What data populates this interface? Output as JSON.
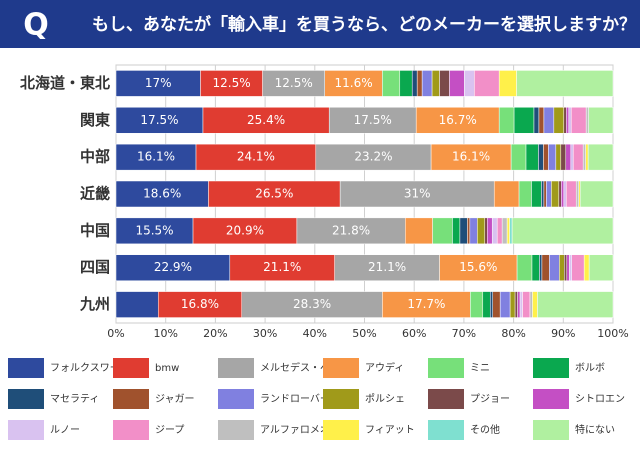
{
  "chart_data": {
    "type": "stacked-bar-horizontal",
    "question_label": "Q",
    "title": "もし、あなたが「輸入車」を買うなら、どのメーカーを選択しますか？",
    "categories": [
      "北海道・東北",
      "関東",
      "中部",
      "近畿",
      "中国",
      "四国",
      "九州"
    ],
    "xlim": [
      0,
      100
    ],
    "xticks": [
      {
        "value": 0,
        "label": "0%"
      },
      {
        "value": 10,
        "label": "10%"
      },
      {
        "value": 20,
        "label": "20%"
      },
      {
        "value": 30,
        "label": "30%"
      },
      {
        "value": 40,
        "label": "40%"
      },
      {
        "value": 50,
        "label": "50%"
      },
      {
        "value": 60,
        "label": "60%"
      },
      {
        "value": 70,
        "label": "70%"
      },
      {
        "value": 80,
        "label": "80%"
      },
      {
        "value": 90,
        "label": "90%"
      },
      {
        "value": 100,
        "label": "100%"
      }
    ],
    "grid": true,
    "series": [
      {
        "name": "フォルクスワーゲン",
        "color": "#2e4a9e",
        "values": [
          17,
          17.5,
          16.1,
          18.6,
          15.5,
          22.9,
          8.5
        ],
        "value_labels": [
          "17%",
          "17.5%",
          "16.1%",
          "18.6%",
          "15.5%",
          "22.9%",
          null
        ]
      },
      {
        "name": "bmw",
        "color": "#e03c31",
        "values": [
          12.5,
          25.4,
          24.1,
          26.5,
          20.9,
          21.1,
          16.8
        ],
        "value_labels": [
          "12.5%",
          "25.4%",
          "24.1%",
          "26.5%",
          "20.9%",
          "21.1%",
          "16.8%"
        ]
      },
      {
        "name": "メルセデス・ベンツ",
        "color": "#a6a6a6",
        "values": [
          12.5,
          17.5,
          23.2,
          31,
          21.8,
          21.1,
          28.3
        ],
        "value_labels": [
          "12.5%",
          "17.5%",
          "23.2%",
          "31%",
          "21.8%",
          "21.1%",
          "28.3%"
        ]
      },
      {
        "name": "アウディ",
        "color": "#f79646",
        "values": [
          11.6,
          16.7,
          16.1,
          5,
          5.5,
          15.6,
          17.7
        ],
        "value_labels": [
          "11.6%",
          "16.7%",
          "16.1%",
          null,
          null,
          "15.6%",
          "17.7%"
        ]
      },
      {
        "name": "ミニ",
        "color": "#77e07a",
        "values": [
          3.5,
          3,
          3,
          2.5,
          4,
          3,
          2.5
        ]
      },
      {
        "name": "ボルボ",
        "color": "#0aa84f",
        "values": [
          2.5,
          4,
          2.5,
          2,
          1.5,
          1.5,
          1.5
        ]
      },
      {
        "name": "マセラティ",
        "color": "#1f4e79",
        "values": [
          1,
          1,
          1,
          0.5,
          1.5,
          0.5,
          0.5
        ]
      },
      {
        "name": "ジャガー",
        "color": "#a0522d",
        "values": [
          1,
          1,
          1,
          0.5,
          0.5,
          1.5,
          1.5
        ]
      },
      {
        "name": "ランドローバー",
        "color": "#8080e0",
        "values": [
          2,
          2,
          1.5,
          1,
          1.5,
          2,
          2
        ]
      },
      {
        "name": "ポルシェ",
        "color": "#a09a1a",
        "values": [
          1.5,
          2,
          1,
          1.5,
          1.5,
          1,
          1
        ]
      },
      {
        "name": "プジョー",
        "color": "#7b4a4a",
        "values": [
          2,
          0.5,
          1,
          0.5,
          0.5,
          0.5,
          0.5
        ]
      },
      {
        "name": "シトロエン",
        "color": "#c44fc4",
        "values": [
          3,
          0.5,
          1,
          0.5,
          1,
          0.5,
          0.5
        ]
      },
      {
        "name": "ルノー",
        "color": "#d9c2f0",
        "values": [
          2,
          0.5,
          0.5,
          0.5,
          1,
          0.5,
          0.5
        ]
      },
      {
        "name": "ジープ",
        "color": "#f28fc8",
        "values": [
          5,
          3,
          2,
          2,
          1,
          2.5,
          1.5
        ]
      },
      {
        "name": "アルファロメオ",
        "color": "#bfbfbf",
        "values": [
          0,
          0.5,
          0.5,
          0.5,
          1,
          0,
          0.5
        ]
      },
      {
        "name": "フィアット",
        "color": "#fff04a",
        "values": [
          3.5,
          0,
          0.5,
          0.3,
          0.5,
          1,
          1
        ]
      },
      {
        "name": "その他",
        "color": "#7fe0d0",
        "values": [
          0,
          0,
          0,
          0,
          0.5,
          0,
          0
        ]
      },
      {
        "name": "特にない",
        "color": "#b0f0a0",
        "values": [
          19.4,
          4.9,
          5,
          6.6,
          20.3,
          4.8,
          15.2
        ]
      }
    ]
  }
}
